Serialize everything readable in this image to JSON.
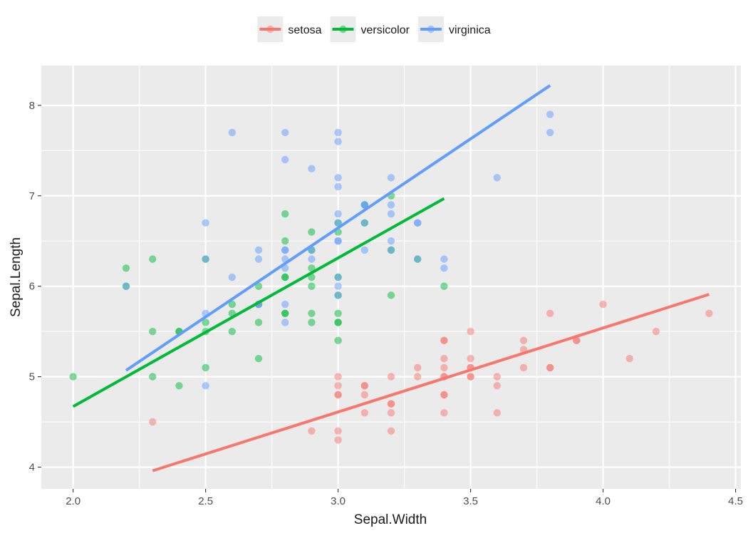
{
  "chart_data": {
    "type": "scatter",
    "xlabel": "Sepal.Width",
    "ylabel": "Sepal.Length",
    "xlim": [
      1.88,
      4.52
    ],
    "ylim": [
      3.76,
      8.44
    ],
    "x_ticks": [
      "2.0",
      "2.5",
      "3.0",
      "3.5",
      "4.0",
      "4.5"
    ],
    "y_ticks": [
      "4",
      "5",
      "6",
      "7",
      "8"
    ],
    "grid": true,
    "legend_position": "top",
    "series": [
      {
        "name": "setosa",
        "color": "#F8766D",
        "points": [
          [
            2.3,
            4.5
          ],
          [
            2.9,
            4.4
          ],
          [
            3.0,
            4.9
          ],
          [
            3.0,
            4.8
          ],
          [
            3.0,
            4.4
          ],
          [
            3.0,
            4.3
          ],
          [
            3.0,
            5.0
          ],
          [
            3.0,
            4.8
          ],
          [
            3.1,
            4.9
          ],
          [
            3.1,
            4.8
          ],
          [
            3.1,
            4.6
          ],
          [
            3.1,
            4.9
          ],
          [
            3.2,
            4.7
          ],
          [
            3.2,
            4.6
          ],
          [
            3.2,
            5.0
          ],
          [
            3.2,
            4.4
          ],
          [
            3.2,
            4.7
          ],
          [
            3.3,
            5.0
          ],
          [
            3.3,
            5.1
          ],
          [
            3.4,
            5.4
          ],
          [
            3.4,
            5.2
          ],
          [
            3.4,
            5.0
          ],
          [
            3.4,
            4.8
          ],
          [
            3.4,
            4.6
          ],
          [
            3.4,
            5.1
          ],
          [
            3.4,
            5.0
          ],
          [
            3.4,
            5.4
          ],
          [
            3.4,
            4.8
          ],
          [
            3.5,
            5.1
          ],
          [
            3.5,
            5.0
          ],
          [
            3.5,
            5.5
          ],
          [
            3.5,
            5.1
          ],
          [
            3.5,
            5.2
          ],
          [
            3.5,
            5.0
          ],
          [
            3.6,
            5.0
          ],
          [
            3.6,
            4.6
          ],
          [
            3.6,
            4.9
          ],
          [
            3.7,
            5.4
          ],
          [
            3.7,
            5.3
          ],
          [
            3.7,
            5.1
          ],
          [
            3.8,
            5.7
          ],
          [
            3.8,
            5.1
          ],
          [
            3.8,
            5.1
          ],
          [
            3.9,
            5.4
          ],
          [
            3.9,
            5.4
          ],
          [
            4.0,
            5.8
          ],
          [
            4.1,
            5.2
          ],
          [
            4.2,
            5.5
          ],
          [
            4.4,
            5.7
          ]
        ],
        "fit": [
          [
            2.3,
            3.96
          ],
          [
            4.4,
            5.91
          ]
        ]
      },
      {
        "name": "versicolor",
        "color": "#00BA38",
        "points": [
          [
            2.0,
            5.0
          ],
          [
            2.2,
            6.2
          ],
          [
            2.2,
            6.0
          ],
          [
            2.3,
            6.3
          ],
          [
            2.3,
            5.5
          ],
          [
            2.3,
            5.0
          ],
          [
            2.4,
            5.5
          ],
          [
            2.4,
            4.9
          ],
          [
            2.4,
            5.5
          ],
          [
            2.5,
            5.5
          ],
          [
            2.5,
            5.1
          ],
          [
            2.5,
            5.6
          ],
          [
            2.5,
            6.3
          ],
          [
            2.6,
            5.8
          ],
          [
            2.6,
            5.7
          ],
          [
            2.6,
            5.5
          ],
          [
            2.7,
            6.0
          ],
          [
            2.7,
            5.8
          ],
          [
            2.7,
            5.6
          ],
          [
            2.7,
            5.2
          ],
          [
            2.8,
            6.5
          ],
          [
            2.8,
            6.8
          ],
          [
            2.8,
            6.1
          ],
          [
            2.8,
            6.1
          ],
          [
            2.8,
            5.7
          ],
          [
            2.8,
            5.7
          ],
          [
            2.9,
            6.6
          ],
          [
            2.9,
            6.4
          ],
          [
            2.9,
            6.2
          ],
          [
            2.9,
            6.1
          ],
          [
            2.9,
            6.0
          ],
          [
            2.9,
            5.7
          ],
          [
            2.9,
            5.6
          ],
          [
            3.0,
            6.7
          ],
          [
            3.0,
            6.6
          ],
          [
            3.0,
            6.1
          ],
          [
            3.0,
            5.9
          ],
          [
            3.0,
            5.7
          ],
          [
            3.0,
            5.6
          ],
          [
            3.0,
            5.4
          ],
          [
            3.0,
            5.6
          ],
          [
            3.1,
            6.9
          ],
          [
            3.1,
            6.7
          ],
          [
            3.2,
            7.0
          ],
          [
            3.2,
            6.4
          ],
          [
            3.2,
            5.9
          ],
          [
            3.3,
            6.3
          ],
          [
            3.4,
            6.0
          ]
        ],
        "fit": [
          [
            2.0,
            4.67
          ],
          [
            3.4,
            6.97
          ]
        ]
      },
      {
        "name": "virginica",
        "color": "#619CFF",
        "points": [
          [
            2.2,
            6.0
          ],
          [
            2.5,
            6.7
          ],
          [
            2.5,
            6.3
          ],
          [
            2.5,
            5.7
          ],
          [
            2.5,
            4.9
          ],
          [
            2.6,
            7.7
          ],
          [
            2.6,
            6.1
          ],
          [
            2.7,
            6.4
          ],
          [
            2.7,
            6.3
          ],
          [
            2.7,
            5.8
          ],
          [
            2.7,
            5.8
          ],
          [
            2.8,
            7.7
          ],
          [
            2.8,
            7.4
          ],
          [
            2.8,
            6.4
          ],
          [
            2.8,
            6.4
          ],
          [
            2.8,
            6.3
          ],
          [
            2.8,
            6.2
          ],
          [
            2.8,
            5.8
          ],
          [
            2.8,
            5.6
          ],
          [
            2.9,
            7.3
          ],
          [
            2.9,
            6.4
          ],
          [
            2.9,
            6.3
          ],
          [
            3.0,
            7.7
          ],
          [
            3.0,
            7.6
          ],
          [
            3.0,
            7.2
          ],
          [
            3.0,
            7.1
          ],
          [
            3.0,
            6.8
          ],
          [
            3.0,
            6.7
          ],
          [
            3.0,
            6.5
          ],
          [
            3.0,
            6.5
          ],
          [
            3.0,
            6.1
          ],
          [
            3.0,
            6.0
          ],
          [
            3.0,
            5.9
          ],
          [
            3.1,
            6.9
          ],
          [
            3.1,
            6.9
          ],
          [
            3.1,
            6.7
          ],
          [
            3.1,
            6.4
          ],
          [
            3.2,
            7.2
          ],
          [
            3.2,
            6.9
          ],
          [
            3.2,
            6.8
          ],
          [
            3.2,
            6.5
          ],
          [
            3.2,
            6.4
          ],
          [
            3.3,
            6.7
          ],
          [
            3.3,
            6.7
          ],
          [
            3.3,
            6.3
          ],
          [
            3.4,
            6.3
          ],
          [
            3.4,
            6.2
          ],
          [
            3.6,
            7.2
          ],
          [
            3.8,
            7.9
          ],
          [
            3.8,
            7.7
          ]
        ],
        "fit": [
          [
            2.2,
            5.07
          ],
          [
            3.8,
            8.22
          ]
        ]
      }
    ]
  }
}
